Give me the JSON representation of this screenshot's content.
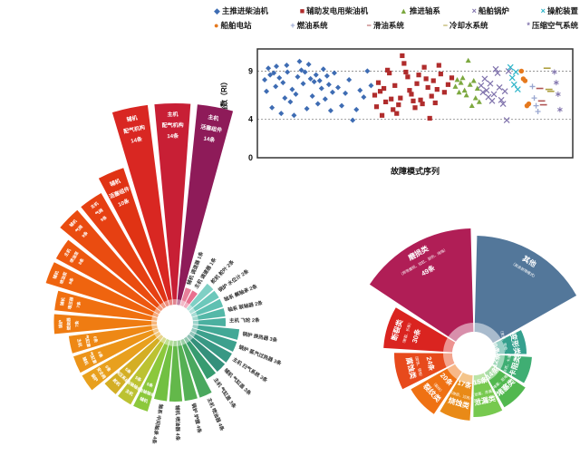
{
  "colors": {
    "background": "#ffffff",
    "axis": "#333333",
    "gridline": "#888888",
    "tick_text": "#111111"
  },
  "chart_data": [
    {
      "type": "scatter",
      "name": "risk-index-scatter",
      "xlabel": "故障模式序列",
      "ylabel": "风险指数（RI）",
      "ylim": [
        0,
        11.3
      ],
      "xlim": [
        0,
        84
      ],
      "yticks": [
        0,
        4,
        9
      ],
      "gridlines_dashed_y": [
        4,
        9
      ],
      "legend_position": "top",
      "legend": [
        {
          "label": "主推进柴油机",
          "marker": "diamond",
          "char": "◆",
          "color": "#3e6cb3"
        },
        {
          "label": "辅助发电用柴油机",
          "marker": "square",
          "char": "■",
          "color": "#b02c2c"
        },
        {
          "label": "推进轴系",
          "marker": "triangle",
          "char": "▲",
          "color": "#7ca83f"
        },
        {
          "label": "船舶锅炉",
          "marker": "x",
          "char": "×",
          "color": "#8174ad"
        },
        {
          "label": "操舵装置",
          "marker": "x",
          "char": "×",
          "color": "#2eb5c9"
        },
        {
          "label": "船舶电站",
          "marker": "circle",
          "char": "●",
          "color": "#e5791e"
        },
        {
          "label": "燃油系统",
          "marker": "plus",
          "char": "+",
          "color": "#9aa7d0"
        },
        {
          "label": "滑油系统",
          "marker": "dash",
          "char": "−",
          "color": "#b05555"
        },
        {
          "label": "冷却水系统",
          "marker": "dash",
          "char": "−",
          "color": "#ad9f3e"
        },
        {
          "label": "压缩空气系统",
          "marker": "asterisk",
          "char": "*",
          "color": "#8174ad"
        }
      ],
      "series": [
        {
          "name": "主推进柴油机",
          "marker": "diamond",
          "color": "#3e6cb3",
          "points": [
            [
              1,
              8.1
            ],
            [
              1.5,
              6.9
            ],
            [
              2,
              9.3
            ],
            [
              2.5,
              8.6
            ],
            [
              3,
              5.2
            ],
            [
              3.5,
              8.8
            ],
            [
              4,
              7.4
            ],
            [
              4.2,
              9.5
            ],
            [
              5,
              8.3
            ],
            [
              5.5,
              4.6
            ],
            [
              6,
              7.8
            ],
            [
              6.5,
              6.2
            ],
            [
              7,
              9.6
            ],
            [
              7.2,
              8.9
            ],
            [
              8,
              5.8
            ],
            [
              8.5,
              7.1
            ],
            [
              9,
              4.4
            ],
            [
              9.5,
              6.6
            ],
            [
              10,
              8.4
            ],
            [
              10.5,
              10.0
            ],
            [
              11,
              9.1
            ],
            [
              11.5,
              7.7
            ],
            [
              12,
              8.9
            ],
            [
              12.5,
              5.1
            ],
            [
              13,
              9.7
            ],
            [
              13.5,
              8.2
            ],
            [
              14,
              6.4
            ],
            [
              14.5,
              7.9
            ],
            [
              15,
              8.6
            ],
            [
              15.5,
              5.6
            ],
            [
              16,
              8.0
            ],
            [
              16.5,
              7.2
            ],
            [
              17,
              9.2
            ],
            [
              17.5,
              6.1
            ],
            [
              18,
              8.5
            ],
            [
              18.5,
              7.6
            ],
            [
              19,
              4.9
            ],
            [
              19.5,
              6.8
            ],
            [
              20,
              8.8
            ],
            [
              21,
              7.3
            ],
            [
              22,
              5.4
            ],
            [
              23,
              6.7
            ],
            [
              24,
              8.1
            ],
            [
              25,
              3.9
            ],
            [
              26,
              5.0
            ],
            [
              27,
              7.0
            ],
            [
              28,
              6.3
            ],
            [
              29,
              9.0
            ],
            [
              30,
              7.5
            ]
          ]
        },
        {
          "name": "辅助发电用柴油机",
          "marker": "square",
          "color": "#b02c2c",
          "points": [
            [
              31,
              6.5
            ],
            [
              31.5,
              5.3
            ],
            [
              32,
              7.8
            ],
            [
              32.5,
              6.9
            ],
            [
              33,
              4.4
            ],
            [
              33.5,
              7.2
            ],
            [
              34,
              5.8
            ],
            [
              34.5,
              9.1
            ],
            [
              35,
              8.8
            ],
            [
              35.5,
              6.1
            ],
            [
              36,
              5.0
            ],
            [
              36.5,
              7.5
            ],
            [
              37,
              4.6
            ],
            [
              37.5,
              5.5
            ],
            [
              38,
              6.2
            ],
            [
              38.5,
              10.6
            ],
            [
              39,
              9.8
            ],
            [
              39.5,
              8.9
            ],
            [
              40,
              8.4
            ],
            [
              40.5,
              7.0
            ],
            [
              41,
              6.6
            ],
            [
              41.5,
              5.9
            ],
            [
              42,
              5.2
            ],
            [
              42.5,
              7.7
            ],
            [
              43,
              8.6
            ],
            [
              43.5,
              6.0
            ],
            [
              44,
              5.6
            ],
            [
              44.5,
              9.4
            ],
            [
              45,
              8.2
            ],
            [
              45.5,
              7.3
            ],
            [
              46,
              4.1
            ],
            [
              46.5,
              6.4
            ],
            [
              47,
              8.0
            ],
            [
              47.5,
              5.7
            ],
            [
              48,
              7.1
            ],
            [
              48.5,
              9.6
            ],
            [
              49,
              8.7
            ],
            [
              50,
              6.8
            ],
            [
              51,
              7.6
            ],
            [
              52,
              8.3
            ]
          ]
        },
        {
          "name": "推进轴系",
          "marker": "triangle",
          "color": "#7ca83f",
          "points": [
            [
              53,
              7.4
            ],
            [
              53.5,
              8.1
            ],
            [
              54,
              6.8
            ],
            [
              54.5,
              7.8
            ],
            [
              55,
              8.3
            ],
            [
              55.5,
              7.0
            ],
            [
              56,
              6.5
            ],
            [
              56.5,
              10.1
            ],
            [
              57,
              7.6
            ],
            [
              57.5,
              5.4
            ],
            [
              58,
              8.0
            ],
            [
              58.5,
              6.2
            ],
            [
              59,
              7.2
            ],
            [
              59.5,
              5.8
            ]
          ]
        },
        {
          "name": "船舶锅炉",
          "marker": "x",
          "color": "#8174ad",
          "points": [
            [
              60,
              7.5
            ],
            [
              60.5,
              6.8
            ],
            [
              61,
              8.2
            ],
            [
              61.5,
              7.0
            ],
            [
              62,
              6.3
            ],
            [
              62.5,
              7.7
            ],
            [
              63,
              5.9
            ],
            [
              63.5,
              6.6
            ],
            [
              64,
              9.2
            ],
            [
              64.5,
              8.8
            ],
            [
              65,
              7.3
            ],
            [
              65.5,
              6.0
            ],
            [
              66,
              5.6
            ],
            [
              66.5,
              6.9
            ],
            [
              67,
              3.9
            ],
            [
              67.5,
              9.0
            ]
          ]
        },
        {
          "name": "操舵装置",
          "marker": "x",
          "color": "#2eb5c9",
          "points": [
            [
              68,
              9.4
            ],
            [
              68.5,
              8.3
            ],
            [
              69,
              7.6
            ],
            [
              69.5,
              8.9
            ],
            [
              70,
              7.1
            ]
          ]
        },
        {
          "name": "船舶电站",
          "marker": "circle",
          "color": "#e5791e",
          "points": [
            [
              71,
              9.0
            ],
            [
              71.5,
              8.2
            ],
            [
              72,
              8.0
            ],
            [
              72.5,
              5.4
            ],
            [
              73,
              5.6
            ]
          ]
        },
        {
          "name": "燃油系统",
          "marker": "plus",
          "color": "#9aa7d0",
          "points": [
            [
              74,
              7.4
            ],
            [
              74.5,
              6.2
            ],
            [
              75,
              5.4
            ],
            [
              75.5,
              4.8
            ]
          ]
        },
        {
          "name": "滑油系统",
          "marker": "dash",
          "color": "#b05555",
          "points": [
            [
              76,
              7.2
            ],
            [
              76.5,
              5.9
            ],
            [
              77,
              5.5
            ]
          ]
        },
        {
          "name": "冷却水系统",
          "marker": "dash",
          "color": "#ad9f3e",
          "points": [
            [
              78,
              9.3
            ],
            [
              78.5,
              7.1
            ],
            [
              79,
              6.9
            ]
          ]
        },
        {
          "name": "压缩空气系统",
          "marker": "asterisk",
          "color": "#8174ad",
          "points": [
            [
              80,
              8.9
            ],
            [
              80.5,
              7.8
            ],
            [
              81,
              6.6
            ],
            [
              81.5,
              5.0
            ]
          ]
        }
      ]
    },
    {
      "type": "bar",
      "subtype": "polar-rose",
      "name": "failure-location-rose",
      "unit": "条",
      "start_angle_deg": 5,
      "wedges": [
        {
          "label": "主机 活塞组件",
          "value": 14,
          "color": "#8e1b59"
        },
        {
          "label": "辅机 调速器",
          "value": 1,
          "color": "#e87f9a"
        },
        {
          "label": "主机 调速器",
          "value": 1,
          "color": "#e8708f"
        },
        {
          "label": "舵机 舵叶",
          "value": 2,
          "color": "#7fd0c5"
        },
        {
          "label": "锅炉 水位计",
          "value": 2,
          "color": "#6cc8bb"
        },
        {
          "label": "轴系 艉轴承",
          "value": 2,
          "color": "#5fc0b2"
        },
        {
          "label": "轴系 联轴器",
          "value": 2,
          "color": "#54b8a8"
        },
        {
          "label": "主机 飞轮",
          "value": 2,
          "color": "#4bb0a0"
        },
        {
          "label": "锅炉 换热器",
          "value": 3,
          "color": "#43a896"
        },
        {
          "label": "锅炉 蒸汽过热器",
          "value": 3,
          "color": "#3da08d"
        },
        {
          "label": "主机 扫气系统",
          "value": 3,
          "color": "#389884"
        },
        {
          "label": "辅机 气缸盖",
          "value": 3,
          "color": "#34907b"
        },
        {
          "label": "主机 气缸盖",
          "value": 3,
          "color": "#379b70"
        },
        {
          "label": "主机 喷油器",
          "value": 4,
          "color": "#4aa85e"
        },
        {
          "label": "锅炉 炉膛",
          "value": 4,
          "color": "#55b054"
        },
        {
          "label": "辅机 喷油器",
          "value": 4,
          "color": "#63b84a"
        },
        {
          "label": "轴系 中间轴承",
          "value": 4,
          "color": "#72c042"
        },
        {
          "label": "辅机 曲轴轴承",
          "value": 5,
          "color": "#8cc83c"
        },
        {
          "label": "主机 曲轴轴承",
          "value": 5,
          "color": "#bcc232"
        },
        {
          "label": "舵机 液压系统",
          "value": 5,
          "color": "#d4ae24"
        },
        {
          "label": "锅炉 安全阀",
          "value": 6,
          "color": "#e8a01e"
        },
        {
          "label": "辅机 气缸套",
          "value": 6,
          "color": "#ec9419"
        },
        {
          "label": "主机 气缸套",
          "value": 6,
          "color": "#ee8815"
        },
        {
          "label": "锅炉 燃烧器",
          "value": 7,
          "color": "#ef7c12"
        },
        {
          "label": "辅机 增压器",
          "value": 7,
          "color": "#f07010"
        },
        {
          "label": "辅机 喷油泵",
          "value": 8,
          "color": "#ef640f"
        },
        {
          "label": "主机 喷油泵",
          "value": 8,
          "color": "#ed580f"
        },
        {
          "label": "辅机 气阀",
          "value": 9,
          "color": "#ea4c10"
        },
        {
          "label": "主机 气阀",
          "value": 9,
          "color": "#e64012"
        },
        {
          "label": "辅机 活塞组件",
          "value": 10,
          "color": "#e03314"
        },
        {
          "label": "辅机 配气机构",
          "value": 14,
          "color": "#d92722"
        },
        {
          "label": "主机 配气机构",
          "value": 14,
          "color": "#c81f35"
        }
      ]
    },
    {
      "type": "pie",
      "subtype": "polar-rose",
      "name": "failure-mode-category-rose",
      "unit": "条",
      "start_angle_deg": 0,
      "wedges": [
        {
          "label": "其他",
          "sub": "（其余故障模式）",
          "value": null,
          "count_text": "",
          "color": "#53779a",
          "sweep": 62,
          "r": 130
        },
        {
          "label": "变形类",
          "sub": "（变形、弯曲、扭曲）",
          "value": 9,
          "count_text": "9条",
          "color": "#35a08e",
          "sweep": 30
        },
        {
          "label": "卡阻类",
          "sub": "（卡死、卡滞）",
          "value": 12,
          "count_text": "12条",
          "color": "#3fae73",
          "sweep": 30
        },
        {
          "label": "堵塞类",
          "sub": "（堵塞、脏堵）",
          "value": 14,
          "count_text": "14条",
          "color": "#52b84f",
          "sweep": 30
        },
        {
          "label": "泄漏类",
          "sub": "（泄漏、渗漏）",
          "value": 15,
          "count_text": "15条",
          "color": "#77c94f",
          "sweep": 30
        },
        {
          "label": "烧蚀类",
          "sub": "（烧损、过热）",
          "value": 17,
          "count_text": "17条",
          "color": "#e98a17",
          "sweep": 30
        },
        {
          "label": "裂纹类",
          "sub": "（裂纹）",
          "value": 20,
          "count_text": "20条",
          "color": "#ef7113",
          "sweep": 30
        },
        {
          "label": "腐蚀类",
          "sub": "（腐蚀、锈蚀）",
          "value": 24,
          "count_text": "24条",
          "color": "#e74a1c",
          "sweep": 30
        },
        {
          "label": "断裂类",
          "sub": "（断裂、折断）",
          "value": 30,
          "count_text": "30条",
          "color": "#da2420",
          "sweep": 30
        },
        {
          "label": "磨损类",
          "sub": "（异常磨损、拉缸、刮伤、烧蚀）",
          "value": 49,
          "count_text": "49条",
          "color": "#b01e56",
          "sweep": 58,
          "r": 138
        }
      ]
    }
  ]
}
